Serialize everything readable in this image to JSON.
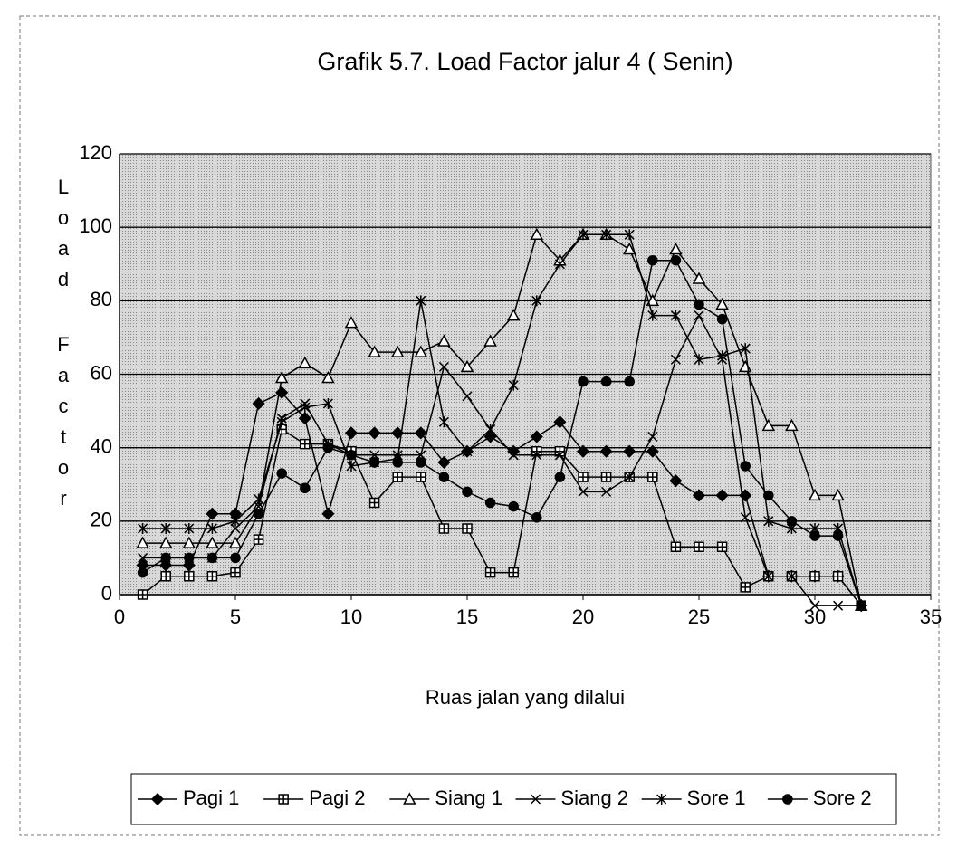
{
  "chart_data": {
    "type": "line",
    "title": "Grafik 5.7. Load Factor jalur 4 ( Senin)",
    "y_label": "Load Factor",
    "x_label": "Ruas jalan yang dilalui",
    "x": [
      1,
      2,
      3,
      4,
      5,
      6,
      7,
      8,
      9,
      10,
      11,
      12,
      13,
      14,
      15,
      16,
      17,
      18,
      19,
      20,
      21,
      22,
      23,
      24,
      25,
      26,
      27,
      28,
      29,
      30,
      31,
      32
    ],
    "series": [
      {
        "name": "Pagi 1",
        "color": "#000000",
        "marker": "diamond",
        "values": [
          8,
          8,
          8,
          22,
          22,
          52,
          55,
          48,
          22,
          44,
          44,
          44,
          44,
          36,
          39,
          43,
          39,
          43,
          47,
          39,
          39,
          39,
          39,
          31,
          27,
          27,
          27,
          5,
          5,
          5,
          5,
          -3
        ]
      },
      {
        "name": "Pagi 2",
        "color": "#000000",
        "marker": "square",
        "values": [
          0,
          5,
          5,
          5,
          6,
          15,
          45,
          41,
          41,
          39,
          25,
          32,
          32,
          18,
          18,
          6,
          6,
          39,
          39,
          32,
          32,
          32,
          32,
          13,
          13,
          13,
          2,
          5,
          5,
          5,
          5,
          -3
        ]
      },
      {
        "name": "Siang 1",
        "color": "#000000",
        "marker": "triangle",
        "values": [
          14,
          14,
          14,
          14,
          14,
          24,
          59,
          63,
          59,
          74,
          66,
          66,
          66,
          69,
          62,
          69,
          76,
          98,
          91,
          98,
          98,
          94,
          80,
          94,
          86,
          79,
          62,
          46,
          46,
          27,
          27,
          -3
        ]
      },
      {
        "name": "Siang 2",
        "color": "#000000",
        "marker": "x",
        "values": [
          10,
          10,
          10,
          10,
          18,
          24,
          48,
          52,
          41,
          38,
          38,
          38,
          38,
          62,
          54,
          45,
          38,
          38,
          38,
          28,
          28,
          32,
          43,
          64,
          76,
          64,
          21,
          5,
          5,
          -3,
          -3,
          -3
        ]
      },
      {
        "name": "Sore 1",
        "color": "#000000",
        "marker": "asterisk",
        "values": [
          18,
          18,
          18,
          18,
          20,
          26,
          47,
          51,
          52,
          35,
          36,
          37,
          80,
          47,
          39,
          45,
          57,
          80,
          90,
          98,
          98,
          98,
          76,
          76,
          64,
          65,
          67,
          20,
          18,
          18,
          18,
          -3
        ]
      },
      {
        "name": "Sore 2",
        "color": "#000000",
        "marker": "circle",
        "values": [
          6,
          10,
          10,
          10,
          10,
          22,
          33,
          29,
          40,
          38,
          36,
          36,
          36,
          32,
          28,
          25,
          24,
          21,
          32,
          58,
          58,
          58,
          91,
          91,
          79,
          75,
          35,
          27,
          20,
          16,
          16,
          -3
        ]
      }
    ],
    "xlim": [
      0,
      35
    ],
    "xticks": [
      0,
      5,
      10,
      15,
      20,
      25,
      30,
      35
    ],
    "ylim": [
      0,
      120
    ],
    "yticks": [
      0,
      20,
      40,
      60,
      80,
      100,
      120
    ],
    "grid": true,
    "legend": "bottom"
  }
}
